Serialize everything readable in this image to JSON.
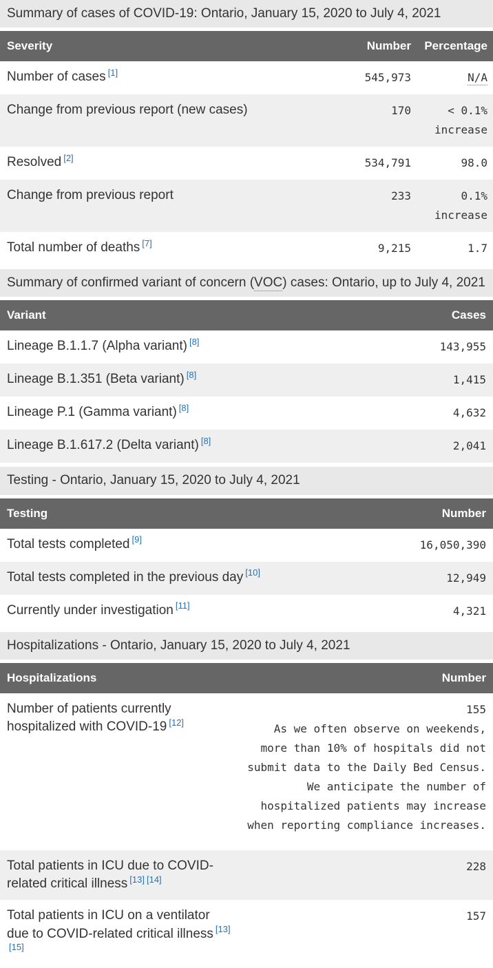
{
  "theme": {
    "caption_bg": "#e8e8e8",
    "header_bg": "#666666",
    "header_text": "#ffffff",
    "stripe_bg": "#efefef",
    "text_color": "#333333",
    "link_color": "#2572b4"
  },
  "cases": {
    "caption": "Summary of cases of COVID-19: Ontario, January 15, 2020 to July 4, 2021",
    "columns": {
      "severity": "Severity",
      "number": "Number",
      "percentage": "Percentage"
    },
    "rows": [
      {
        "label": "Number of cases",
        "fn1": "[1]",
        "number": "545,973",
        "pct": "N/A"
      },
      {
        "label": "Change from previous report (new cases)",
        "number": "170",
        "pct": "< 0.1%",
        "pct2": "increase"
      },
      {
        "label": "Resolved",
        "fn1": "[2]",
        "number": "534,791",
        "pct": "98.0"
      },
      {
        "label": "Change from previous report",
        "number": "233",
        "pct": "0.1%",
        "pct2": "increase"
      },
      {
        "label": "Total number of deaths",
        "fn1": "[7]",
        "number": "9,215",
        "pct": "1.7"
      }
    ]
  },
  "voc": {
    "caption_pre": "Summary of confirmed variant of concern (",
    "caption_abbr": "VOC",
    "caption_post": ") cases: Ontario, up to July 4, 2021",
    "columns": {
      "variant": "Variant",
      "cases": "Cases"
    },
    "rows": [
      {
        "label": "Lineage B.1.1.7 (Alpha variant)",
        "fn1": "[8]",
        "number": "143,955"
      },
      {
        "label": "Lineage B.1.351 (Beta variant)",
        "fn1": "[8]",
        "number": "1,415"
      },
      {
        "label": "Lineage P.1 (Gamma variant)",
        "fn1": "[8]",
        "number": "4,632"
      },
      {
        "label": "Lineage B.1.617.2 (Delta variant)",
        "fn1": "[8]",
        "number": "2,041"
      }
    ]
  },
  "testing": {
    "caption": "Testing - Ontario, January 15, 2020 to July 4, 2021",
    "columns": {
      "testing": "Testing",
      "number": "Number"
    },
    "rows": [
      {
        "label": "Total tests completed",
        "fn1": "[9]",
        "number": "16,050,390"
      },
      {
        "label": "Total tests completed in the previous day",
        "fn1": "[10]",
        "number": "12,949"
      },
      {
        "label": "Currently under investigation",
        "fn1": "[11]",
        "number": "4,321"
      }
    ]
  },
  "hospitalizations": {
    "caption": "Hospitalizations - Ontario, January 15, 2020 to July 4, 2021",
    "columns": {
      "hospitalizations": "Hospitalizations",
      "number": "Number"
    },
    "rows": [
      {
        "label": "Number of patients currently hospitalized with COVID-19",
        "fn1": "[12]",
        "number": "155",
        "note": "As we often observe on weekends, more than 10% of hospitals did not submit data to the Daily Bed Census. We anticipate the number of hospitalized patients may increase when reporting compliance increases."
      },
      {
        "label": "Total patients in ICU due to COVID-related critical illness",
        "fn1": "[13]",
        "fn2": "[14]",
        "number": "228"
      },
      {
        "label": "Total patients in ICU on a ventilator due to COVID-related critical illness",
        "fn1": "[13]",
        "fn2": "[15]",
        "number": "157"
      }
    ]
  }
}
